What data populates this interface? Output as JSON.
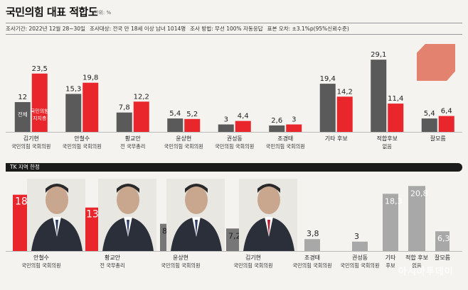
{
  "title": "국민의힘 대표 적합도",
  "unit": "단위: %",
  "info": [
    "조사기간: 2022년 12월 28~30일",
    "조사대상: 전국 만 18세 이상 남녀 1014명",
    "조사 방법: 무선 100% 자동응답",
    "표본 오차: ±3.1%p(95%신뢰수준)"
  ],
  "section2_label": "TK 지역 한정",
  "watermark": "아시아투데이",
  "chart_data": [
    {
      "type": "bar",
      "title": "국민의힘 대표 적합도",
      "categories": [
        [
          "김기현",
          "국민의힘 국회의원"
        ],
        [
          "안철수",
          "국민의힘 국회의원"
        ],
        [
          "황교안",
          "전 국무총리"
        ],
        [
          "윤상현",
          "국민의힘 국회의원"
        ],
        [
          "권성동",
          "국민의힘 국회의원"
        ],
        [
          "조경태",
          "국민의힘 국회의원"
        ],
        [
          "기타 후보",
          ""
        ],
        [
          "적합후보",
          "없음"
        ],
        [
          "잘모름",
          ""
        ]
      ],
      "series": [
        {
          "name": "전체",
          "color": "#5a5a5a",
          "values": [
            12,
            15.3,
            7.8,
            5.4,
            3,
            2.6,
            19.4,
            29.1,
            5.4
          ],
          "labels": [
            "12",
            "15,3",
            "7,8",
            "5,4",
            "3",
            "2,6",
            "19,4",
            "29,1",
            "5,4"
          ]
        },
        {
          "name": "국민의힘 지지층",
          "color": "#e8262b",
          "values": [
            23.5,
            19.8,
            12.2,
            5.2,
            4.4,
            3,
            14.2,
            11.4,
            6.4
          ],
          "labels": [
            "23,5",
            "19,8",
            "12,2",
            "5,2",
            "4,4",
            "3",
            "14,2",
            "11,4",
            "6,4"
          ]
        }
      ],
      "legend_in_chart": [
        "전체",
        "국민의힘",
        "지지층"
      ],
      "ylim": [
        0,
        32
      ]
    },
    {
      "type": "bar",
      "title": "TK 지역 한정",
      "categories": [
        [
          "안철수",
          "국민의힘 국회의원"
        ],
        [
          "황교안",
          "전 국무총리"
        ],
        [
          "윤상현",
          "국민의힘 국회의원"
        ],
        [
          "김기현",
          "국민의힘 국회의원"
        ],
        [
          "조경태",
          "국민의힘 국회의원"
        ],
        [
          "권성동",
          "국민의힘 국회의원"
        ],
        [
          "기타",
          "후보"
        ],
        [
          "적합 후보",
          "없음"
        ],
        [
          "잘모름",
          ""
        ]
      ],
      "values": [
        18,
        13.9,
        8.7,
        7.2,
        3.8,
        3,
        18.3,
        20.8,
        6.3
      ],
      "labels": [
        "18",
        "13,9",
        "8,7",
        "7,2",
        "3,8",
        "3",
        "18,3",
        "20,8",
        "6,3"
      ],
      "colors": [
        "#e8262b",
        "#e8262b",
        "#777777",
        "#777777",
        "#a8a8a8",
        "#a8a8a8",
        "#a8a8a8",
        "#a8a8a8",
        "#a8a8a8"
      ],
      "ylim": [
        0,
        22
      ]
    }
  ]
}
